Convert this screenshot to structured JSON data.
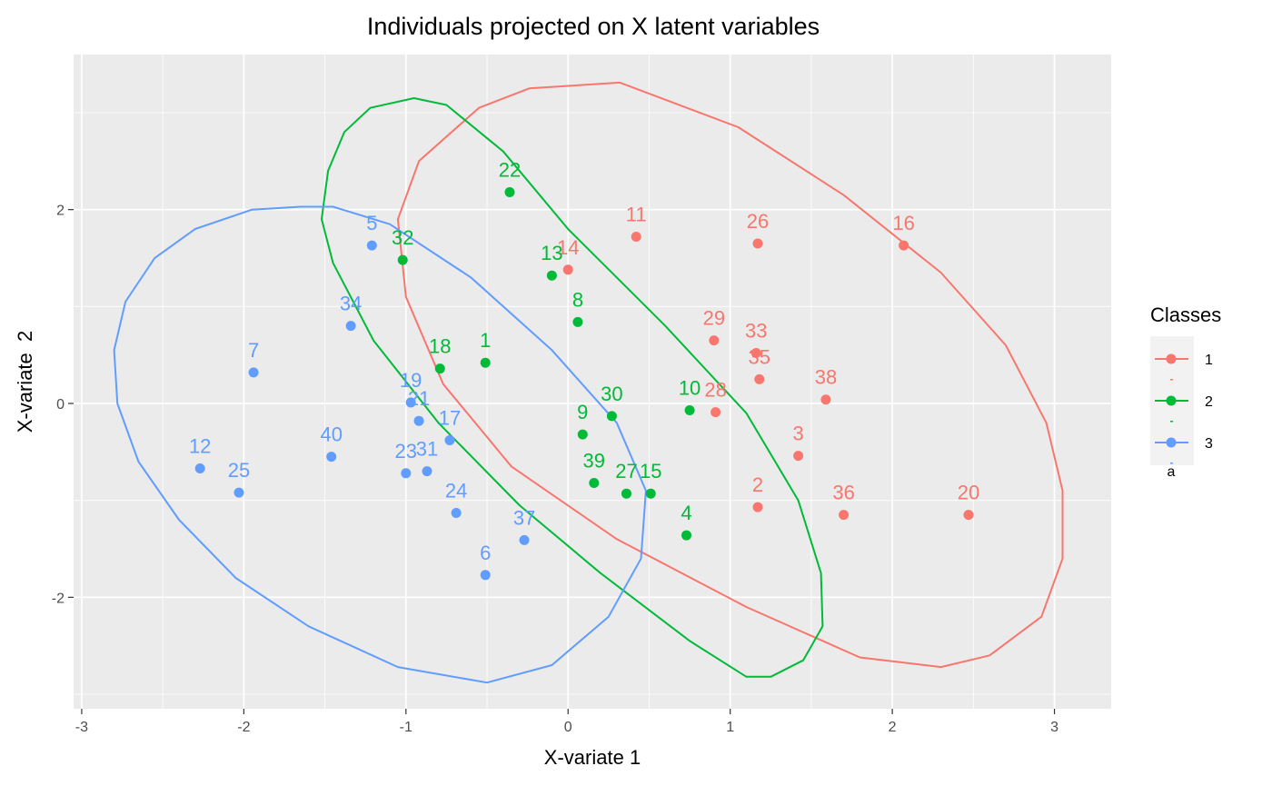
{
  "chart_data": {
    "type": "scatter",
    "title": "Individuals projected on X latent variables",
    "xlabel": "X-variate 1",
    "ylabel": "X-variate  2",
    "xlim": [
      -3.05,
      3.35
    ],
    "ylim": [
      -3.15,
      3.6
    ],
    "xticks": [
      -3,
      -2,
      -1,
      0,
      1,
      2,
      3
    ],
    "yticks": [
      -2,
      0,
      2
    ],
    "grid": true,
    "legend": {
      "title": "Classes",
      "position": "right",
      "entries": [
        "1",
        "2",
        "3"
      ],
      "extra_text": "a"
    },
    "series": [
      {
        "name": "1",
        "color": "#F8766D",
        "points": [
          {
            "label": "11",
            "x": 0.42,
            "y": 1.72
          },
          {
            "label": "14",
            "x": 0.0,
            "y": 1.38
          },
          {
            "label": "26",
            "x": 1.17,
            "y": 1.65
          },
          {
            "label": "16",
            "x": 2.07,
            "y": 1.63
          },
          {
            "label": "29",
            "x": 0.9,
            "y": 0.65
          },
          {
            "label": "33",
            "x": 1.16,
            "y": 0.52
          },
          {
            "label": "35",
            "x": 1.18,
            "y": 0.25
          },
          {
            "label": "38",
            "x": 1.59,
            "y": 0.04
          },
          {
            "label": "28",
            "x": 0.91,
            "y": -0.09
          },
          {
            "label": "3",
            "x": 1.42,
            "y": -0.54
          },
          {
            "label": "2",
            "x": 1.17,
            "y": -1.07
          },
          {
            "label": "36",
            "x": 1.7,
            "y": -1.15
          },
          {
            "label": "20",
            "x": 2.47,
            "y": -1.15
          }
        ],
        "ellipse": [
          [
            0.32,
            3.31
          ],
          [
            -0.24,
            3.25
          ],
          [
            -0.55,
            3.05
          ],
          [
            -0.92,
            2.5
          ],
          [
            -1.05,
            1.9
          ],
          [
            -1.0,
            1.1
          ],
          [
            -0.77,
            0.2
          ],
          [
            -0.35,
            -0.65
          ],
          [
            0.3,
            -1.4
          ],
          [
            1.1,
            -2.1
          ],
          [
            1.8,
            -2.62
          ],
          [
            2.3,
            -2.72
          ],
          [
            2.6,
            -2.6
          ],
          [
            2.92,
            -2.2
          ],
          [
            3.05,
            -1.6
          ],
          [
            3.05,
            -0.9
          ],
          [
            2.95,
            -0.2
          ],
          [
            2.7,
            0.6
          ],
          [
            2.3,
            1.35
          ],
          [
            1.7,
            2.15
          ],
          [
            1.05,
            2.85
          ]
        ]
      },
      {
        "name": "2",
        "color": "#00BA38",
        "points": [
          {
            "label": "22",
            "x": -0.36,
            "y": 2.18
          },
          {
            "label": "32",
            "x": -1.02,
            "y": 1.48
          },
          {
            "label": "13",
            "x": -0.1,
            "y": 1.32
          },
          {
            "label": "8",
            "x": 0.06,
            "y": 0.84
          },
          {
            "label": "18",
            "x": -0.79,
            "y": 0.36
          },
          {
            "label": "1",
            "x": -0.51,
            "y": 0.42
          },
          {
            "label": "30",
            "x": 0.27,
            "y": -0.13
          },
          {
            "label": "9",
            "x": 0.09,
            "y": -0.32
          },
          {
            "label": "10",
            "x": 0.75,
            "y": -0.07
          },
          {
            "label": "39",
            "x": 0.16,
            "y": -0.82
          },
          {
            "label": "27",
            "x": 0.36,
            "y": -0.93
          },
          {
            "label": "15",
            "x": 0.51,
            "y": -0.93
          },
          {
            "label": "4",
            "x": 0.73,
            "y": -1.36
          }
        ],
        "ellipse": [
          [
            -0.95,
            3.15
          ],
          [
            -1.22,
            3.05
          ],
          [
            -1.38,
            2.8
          ],
          [
            -1.48,
            2.4
          ],
          [
            -1.52,
            1.9
          ],
          [
            -1.45,
            1.45
          ],
          [
            -1.2,
            0.65
          ],
          [
            -0.8,
            -0.2
          ],
          [
            -0.3,
            -1.05
          ],
          [
            0.2,
            -1.75
          ],
          [
            0.75,
            -2.45
          ],
          [
            1.1,
            -2.82
          ],
          [
            1.25,
            -2.82
          ],
          [
            1.45,
            -2.65
          ],
          [
            1.57,
            -2.3
          ],
          [
            1.56,
            -1.75
          ],
          [
            1.42,
            -1.0
          ],
          [
            1.1,
            -0.1
          ],
          [
            0.6,
            0.8
          ],
          [
            0.0,
            1.8
          ],
          [
            -0.4,
            2.6
          ],
          [
            -0.75,
            3.08
          ]
        ]
      },
      {
        "name": "3",
        "color": "#619CFF",
        "points": [
          {
            "label": "5",
            "x": -1.21,
            "y": 1.63
          },
          {
            "label": "34",
            "x": -1.34,
            "y": 0.8
          },
          {
            "label": "7",
            "x": -1.94,
            "y": 0.32
          },
          {
            "label": "19",
            "x": -0.97,
            "y": 0.01
          },
          {
            "label": "21",
            "x": -0.92,
            "y": -0.18
          },
          {
            "label": "17",
            "x": -0.73,
            "y": -0.38
          },
          {
            "label": "40",
            "x": -1.46,
            "y": -0.55
          },
          {
            "label": "23",
            "x": -1.0,
            "y": -0.72
          },
          {
            "label": "31",
            "x": -0.87,
            "y": -0.7
          },
          {
            "label": "12",
            "x": -2.27,
            "y": -0.67
          },
          {
            "label": "25",
            "x": -2.03,
            "y": -0.92
          },
          {
            "label": "24",
            "x": -0.69,
            "y": -1.13
          },
          {
            "label": "37",
            "x": -0.27,
            "y": -1.41
          },
          {
            "label": "6",
            "x": -0.51,
            "y": -1.77
          }
        ],
        "ellipse": [
          [
            -1.65,
            2.03
          ],
          [
            -1.95,
            2.0
          ],
          [
            -2.3,
            1.8
          ],
          [
            -2.55,
            1.5
          ],
          [
            -2.73,
            1.05
          ],
          [
            -2.8,
            0.55
          ],
          [
            -2.78,
            0.0
          ],
          [
            -2.65,
            -0.6
          ],
          [
            -2.4,
            -1.2
          ],
          [
            -2.05,
            -1.8
          ],
          [
            -1.6,
            -2.3
          ],
          [
            -1.05,
            -2.72
          ],
          [
            -0.5,
            -2.88
          ],
          [
            -0.1,
            -2.7
          ],
          [
            0.25,
            -2.2
          ],
          [
            0.45,
            -1.6
          ],
          [
            0.48,
            -0.9
          ],
          [
            0.3,
            -0.2
          ],
          [
            -0.1,
            0.55
          ],
          [
            -0.6,
            1.3
          ],
          [
            -1.1,
            1.85
          ],
          [
            -1.45,
            2.03
          ]
        ]
      }
    ]
  }
}
